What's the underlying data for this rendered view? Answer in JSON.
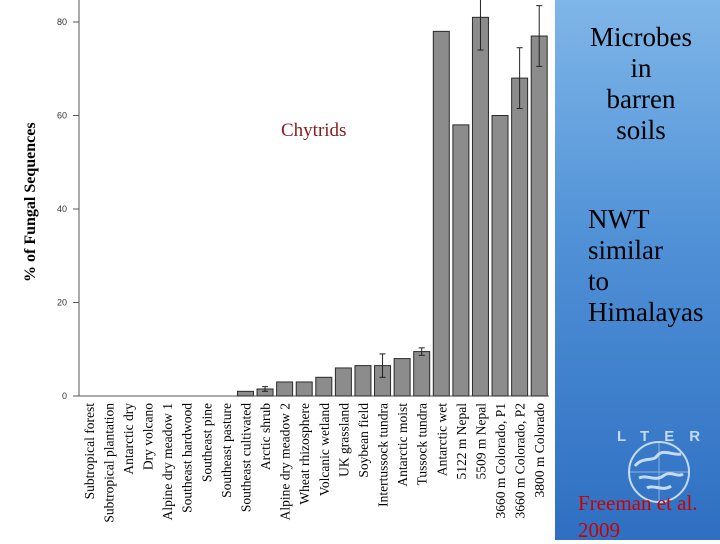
{
  "chart_data": {
    "type": "bar",
    "ylabel": "% of Fungal Sequences",
    "ylim": [
      0,
      85
    ],
    "yticks": [
      0,
      20,
      40,
      60,
      80
    ],
    "bar_color": "#8c8c8c",
    "categories": [
      "Subtropical forest",
      "Subtropical plantation",
      "Antarctic dry",
      "Dry volcano",
      "Alpine dry meadow 1",
      "Southeast hardwood",
      "Southeast pine",
      "Southeast pasture",
      "Southeast cultivated",
      "Arctic shrub",
      "Alpine dry meadow 2",
      "Wheat rhizosphere",
      "Volcanic wetland",
      "UK grassland",
      "Soybean field",
      "Intertussock tundra",
      "Antarctic moist",
      "Tussock tundra",
      "Antarctic wet",
      "5122 m Nepal",
      "5509 m Nepal",
      "3660 m Colorado, P1",
      "3660 m Colorado, P2",
      "3800 m Colorado"
    ],
    "values": [
      0,
      0,
      0,
      0,
      0,
      0,
      0,
      0,
      1,
      1.5,
      3,
      3,
      4,
      6,
      6.5,
      6.5,
      8,
      9.5,
      78,
      58,
      81,
      60,
      68,
      77
    ],
    "errors": [
      0,
      0,
      0,
      0,
      0,
      0,
      0,
      0,
      0,
      0.5,
      0,
      0,
      0,
      0,
      0,
      2.5,
      0,
      0.8,
      0,
      0,
      7,
      0,
      6.5,
      6.5
    ],
    "annotation": "Chytrids"
  },
  "panel": {
    "title": "Microbes\nin\nbarren\nsoils",
    "note": "NWT\nsimilar\nto\nHimalayas",
    "logo_letters": "LTER",
    "credit": "Freeman et al.\n2009",
    "accent": "#2f6fc2",
    "credit_color": "#cc0000"
  }
}
